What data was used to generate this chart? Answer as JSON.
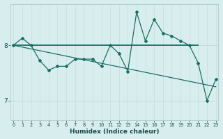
{
  "xlabel": "Humidex (Indice chaleur)",
  "bg_color": "#d8eeee",
  "grid_color_major": "#c0dcdc",
  "grid_color_minor": "#d0e8e8",
  "line_color": "#1a6e64",
  "x_ticks": [
    0,
    1,
    2,
    3,
    4,
    5,
    6,
    7,
    8,
    9,
    10,
    11,
    12,
    13,
    14,
    15,
    16,
    17,
    18,
    19,
    20,
    21,
    22,
    23
  ],
  "y_ticks": [
    7,
    8
  ],
  "ylim": [
    6.65,
    8.75
  ],
  "xlim": [
    -0.3,
    23.3
  ],
  "series1_x": [
    0,
    1,
    2,
    3,
    4,
    5,
    6,
    7,
    8,
    9,
    10,
    11,
    12,
    13,
    14,
    15,
    16,
    17,
    18,
    19,
    20,
    21,
    22,
    23
  ],
  "series1_y": [
    8.0,
    8.13,
    8.0,
    7.72,
    7.55,
    7.62,
    7.62,
    7.75,
    7.75,
    7.75,
    7.62,
    8.0,
    7.85,
    7.53,
    8.6,
    8.08,
    8.47,
    8.22,
    8.17,
    8.08,
    8.0,
    7.68,
    7.0,
    7.38
  ],
  "series2_x": [
    0,
    21
  ],
  "series2_y": [
    8.0,
    8.0
  ],
  "series3_x": [
    0,
    23
  ],
  "series3_y": [
    8.0,
    7.25
  ]
}
